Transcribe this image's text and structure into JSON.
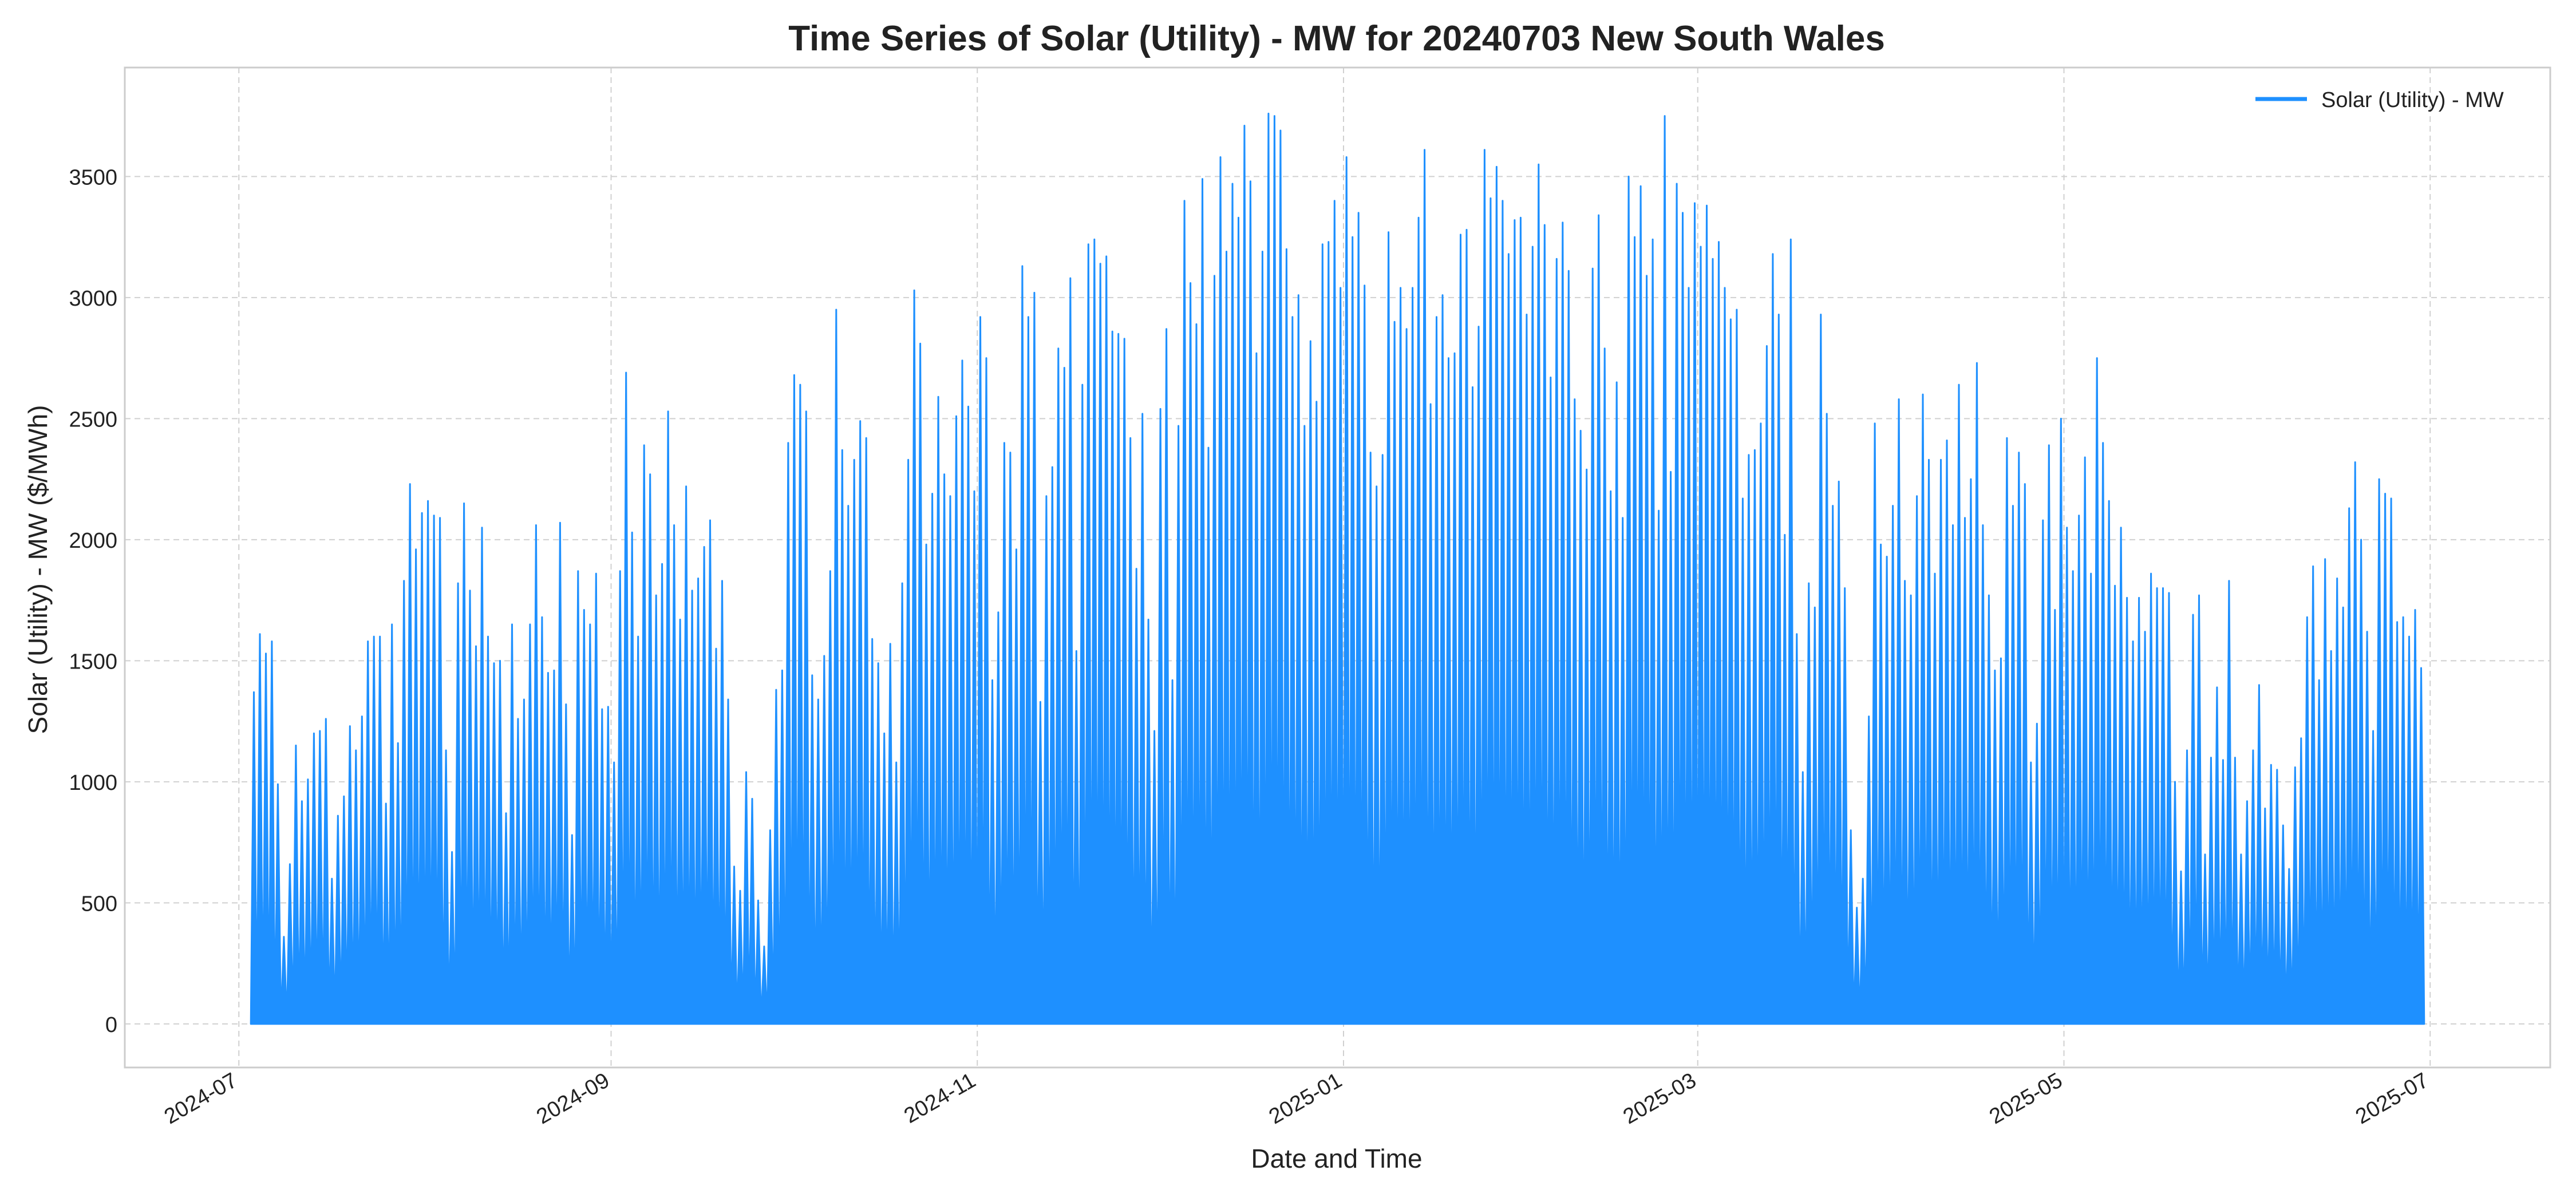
{
  "chart_data": {
    "type": "area",
    "title": "Time Series of Solar (Utility) -  MW for 20240703 New South Wales",
    "xlabel": "Date and Time",
    "ylabel": "Solar (Utility) -  MW ($/MWh)",
    "x_range": [
      "2024-06-12",
      "2025-07-21"
    ],
    "ylim": [
      -180,
      3950
    ],
    "x_ticks": [
      "2024-07",
      "2024-09",
      "2024-11",
      "2025-01",
      "2025-03",
      "2025-05",
      "2025-07"
    ],
    "y_ticks": [
      0,
      500,
      1000,
      1500,
      2000,
      2500,
      3000,
      3500
    ],
    "grid": true,
    "legend": {
      "position": "top-right",
      "entries": [
        "Solar (Utility) -  MW"
      ]
    },
    "series": [
      {
        "name": "Solar (Utility) -  MW",
        "color": "#1e90ff",
        "start_date": "2024-07-03",
        "interval": "daily peak",
        "daily_peaks": [
          1370,
          1610,
          1530,
          1580,
          990,
          360,
          660,
          1150,
          920,
          1010,
          1200,
          1210,
          1260,
          600,
          860,
          940,
          1230,
          1130,
          1270,
          1580,
          1600,
          1600,
          910,
          1650,
          1160,
          1830,
          2230,
          1960,
          2110,
          2160,
          2100,
          2090,
          1130,
          710,
          1820,
          2150,
          1790,
          1560,
          2050,
          1600,
          1490,
          1500,
          870,
          1650,
          1260,
          1340,
          1650,
          2060,
          1680,
          1450,
          1460,
          2070,
          1320,
          780,
          1870,
          1710,
          1650,
          1860,
          1300,
          1310,
          1080,
          1870,
          2690,
          2030,
          1600,
          2390,
          2270,
          1770,
          1900,
          2530,
          2060,
          1670,
          2220,
          1790,
          1840,
          1970,
          2080,
          1550,
          1830,
          1340,
          650,
          550,
          1040,
          930,
          510,
          320,
          800,
          1380,
          1460,
          2400,
          2680,
          2640,
          2530,
          1440,
          1340,
          1520,
          1870,
          2950,
          2370,
          2140,
          2330,
          2490,
          2420,
          1590,
          1490,
          1200,
          1570,
          1080,
          1820,
          2330,
          3030,
          2810,
          1980,
          2190,
          2590,
          2270,
          2180,
          2510,
          2740,
          2550,
          2200,
          2920,
          2750,
          1420,
          1700,
          2400,
          2360,
          1960,
          3130,
          2920,
          3020,
          1330,
          2180,
          2300,
          2790,
          2710,
          3080,
          1540,
          2640,
          3220,
          3240,
          3140,
          3170,
          2860,
          2850,
          2830,
          2420,
          1880,
          2520,
          1670,
          1210,
          2540,
          2870,
          1420,
          2470,
          3400,
          3060,
          2890,
          3490,
          2380,
          3090,
          3580,
          3190,
          3470,
          3330,
          3710,
          3480,
          2770,
          3190,
          3760,
          3750,
          3690,
          3200,
          2920,
          3010,
          2470,
          2820,
          2570,
          3220,
          3230,
          3400,
          3040,
          3580,
          3250,
          3350,
          3050,
          2360,
          2220,
          2350,
          3270,
          2900,
          3040,
          2870,
          3040,
          3330,
          3610,
          2560,
          2920,
          3010,
          2750,
          2770,
          3260,
          3280,
          2630,
          2880,
          3610,
          3410,
          3540,
          3400,
          3180,
          3320,
          3330,
          2930,
          3210,
          3550,
          3300,
          2670,
          3160,
          3310,
          3110,
          2580,
          2450,
          2290,
          3120,
          3340,
          2790,
          2200,
          2650,
          2090,
          3500,
          3250,
          3460,
          3090,
          3240,
          2120,
          3750,
          2280,
          3470,
          3350,
          3040,
          3390,
          3210,
          3380,
          3160,
          3230,
          3040,
          2910,
          2950,
          2170,
          2350,
          2370,
          2480,
          2800,
          3180,
          2930,
          2020,
          3240,
          1610,
          1040,
          1820,
          1720,
          2930,
          2520,
          2140,
          2240,
          1800,
          800,
          480,
          600,
          1270,
          2480,
          1980,
          1930,
          2140,
          2580,
          1830,
          1770,
          2180,
          2600,
          2330,
          1860,
          2330,
          2410,
          2060,
          2640,
          2090,
          2250,
          2730,
          2060,
          1770,
          1460,
          1510,
          2420,
          2140,
          2360,
          2230,
          1080,
          1240,
          2080,
          2390,
          1710,
          2500,
          2050,
          1870,
          2100,
          2340,
          1860,
          2750,
          2400,
          2160,
          1810,
          2050,
          1760,
          1580,
          1760,
          1620,
          1860,
          1800,
          1800,
          1780,
          1000,
          630,
          1130,
          1690,
          1770,
          700,
          1100,
          1390,
          1090,
          1830,
          1100,
          700,
          920,
          1130,
          1400,
          890,
          1070,
          1050,
          820,
          640,
          1060,
          1180,
          1680,
          1890,
          1420,
          1920,
          1540,
          1840,
          1720,
          2130,
          2320,
          2000,
          1620,
          1210,
          2250,
          2190,
          2170,
          1660,
          1680,
          1600,
          1710,
          1470
        ]
      }
    ]
  }
}
